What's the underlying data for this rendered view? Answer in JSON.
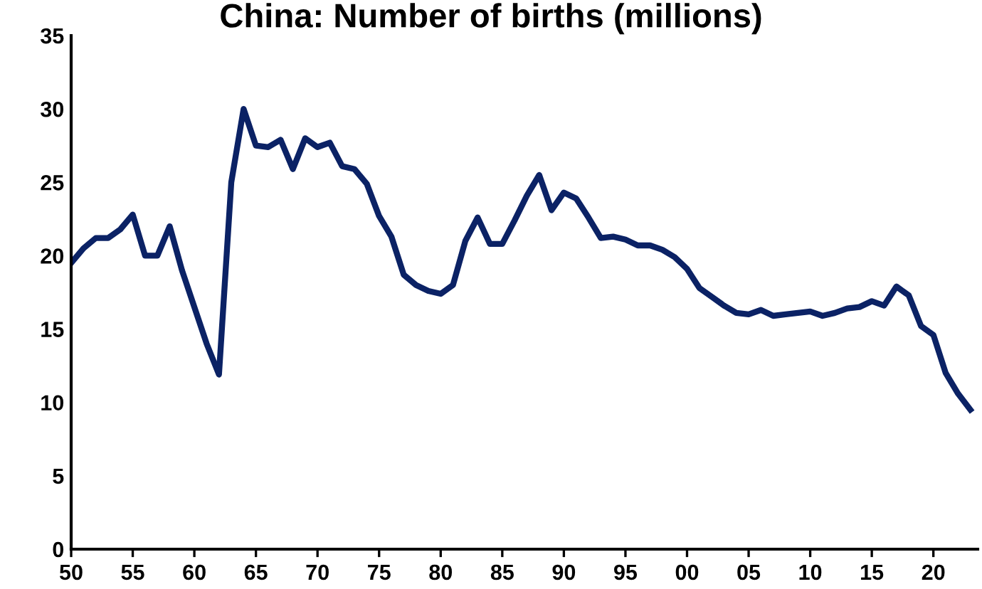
{
  "chart_data": {
    "type": "line",
    "title": "China: Number of births (millions)",
    "x": [
      1950,
      1951,
      1952,
      1953,
      1954,
      1955,
      1956,
      1957,
      1958,
      1959,
      1960,
      1961,
      1962,
      1963,
      1964,
      1965,
      1966,
      1967,
      1968,
      1969,
      1970,
      1971,
      1972,
      1973,
      1974,
      1975,
      1976,
      1977,
      1978,
      1979,
      1980,
      1981,
      1982,
      1983,
      1984,
      1985,
      1986,
      1987,
      1988,
      1989,
      1990,
      1991,
      1992,
      1993,
      1994,
      1995,
      1996,
      1997,
      1998,
      1999,
      2000,
      2001,
      2002,
      2003,
      2004,
      2005,
      2006,
      2007,
      2008,
      2009,
      2010,
      2011,
      2012,
      2013,
      2014,
      2015,
      2016,
      2017,
      2018,
      2019,
      2020,
      2021,
      2022,
      2023
    ],
    "series": [
      {
        "color": "#0b2265",
        "values": [
          19.5,
          20.5,
          21.2,
          21.2,
          21.8,
          22.8,
          20.0,
          20.0,
          22.0,
          19.0,
          16.5,
          14.0,
          11.9,
          25.0,
          30.0,
          27.5,
          27.4,
          27.9,
          25.9,
          28.0,
          27.4,
          27.7,
          26.1,
          25.9,
          24.9,
          22.7,
          21.3,
          18.7,
          18.0,
          17.6,
          17.4,
          18.0,
          21.0,
          22.6,
          20.8,
          20.8,
          22.4,
          24.1,
          25.5,
          23.1,
          24.3,
          23.9,
          22.6,
          21.2,
          21.3,
          21.1,
          20.7,
          20.7,
          20.4,
          19.9,
          19.1,
          17.8,
          17.2,
          16.6,
          16.1,
          16.0,
          16.3,
          15.9,
          16.0,
          16.1,
          16.2,
          15.9,
          16.1,
          16.4,
          16.5,
          16.9,
          16.6,
          17.9,
          17.3,
          15.2,
          14.6,
          12.0,
          10.6,
          9.5
        ]
      }
    ],
    "xlim": [
      1950,
      2023.6
    ],
    "xticks": [
      {
        "value": 1950,
        "label": "50"
      },
      {
        "value": 1955,
        "label": "55"
      },
      {
        "value": 1960,
        "label": "60"
      },
      {
        "value": 1965,
        "label": "65"
      },
      {
        "value": 1970,
        "label": "70"
      },
      {
        "value": 1975,
        "label": "75"
      },
      {
        "value": 1980,
        "label": "80"
      },
      {
        "value": 1985,
        "label": "85"
      },
      {
        "value": 1990,
        "label": "90"
      },
      {
        "value": 1995,
        "label": "95"
      },
      {
        "value": 2000,
        "label": "00"
      },
      {
        "value": 2005,
        "label": "05"
      },
      {
        "value": 2010,
        "label": "10"
      },
      {
        "value": 2015,
        "label": "15"
      },
      {
        "value": 2020,
        "label": "20"
      }
    ],
    "ylim": [
      0,
      35
    ],
    "yticks": [
      0,
      5,
      10,
      15,
      20,
      25,
      30,
      35
    ],
    "grid": false,
    "legend": false,
    "marker": "none",
    "line_style": "solid"
  }
}
